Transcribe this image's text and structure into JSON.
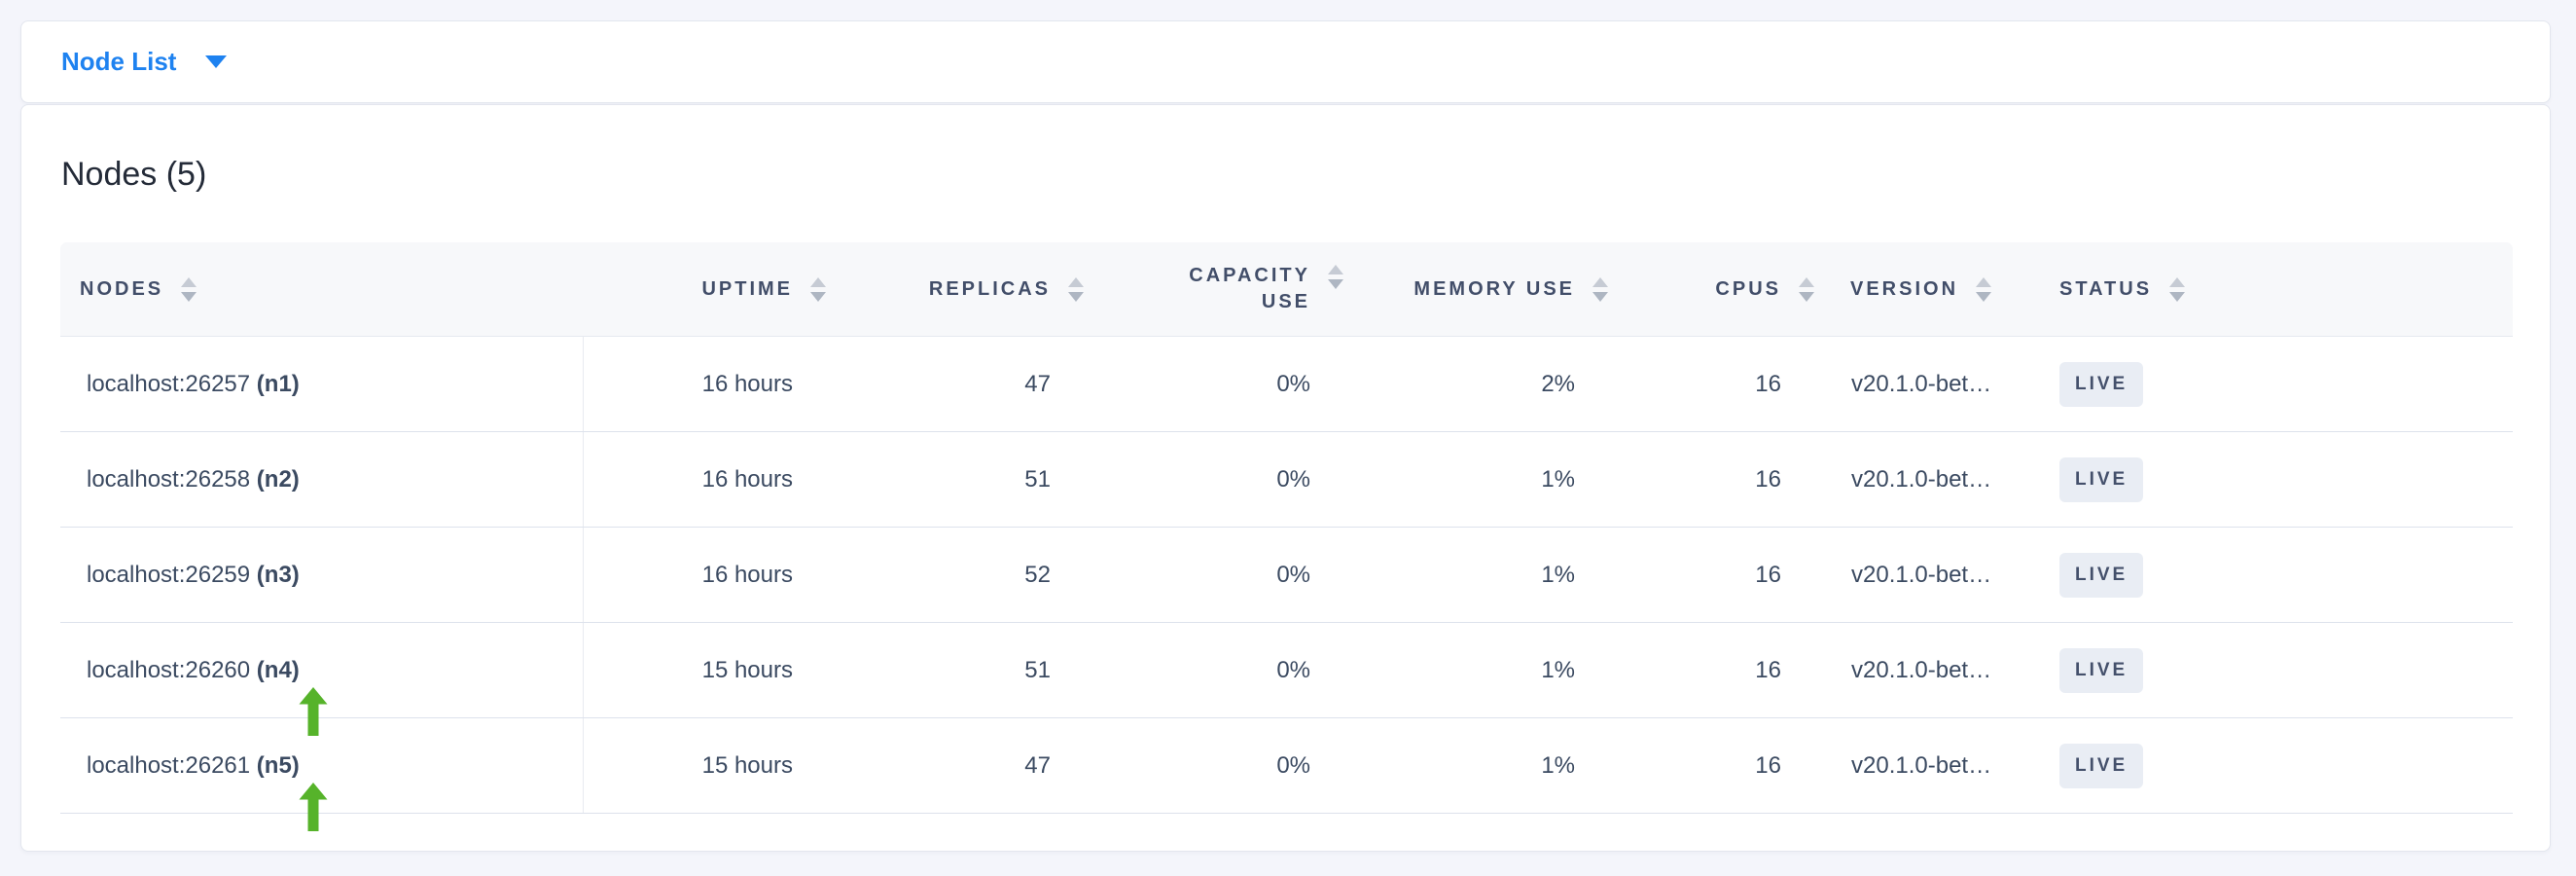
{
  "topbar": {
    "dropdown": {
      "label": "Node List"
    }
  },
  "main": {
    "title": "Nodes (5)"
  },
  "table": {
    "columns": [
      {
        "id": "nodes",
        "label": "NODES",
        "align": "left"
      },
      {
        "id": "uptime",
        "label": "UPTIME",
        "align": "right"
      },
      {
        "id": "replicas",
        "label": "REPLICAS",
        "align": "right"
      },
      {
        "id": "capacity_use",
        "label": "CAPACITY USE",
        "align": "right"
      },
      {
        "id": "memory_use",
        "label": "MEMORY USE",
        "align": "right"
      },
      {
        "id": "cpus",
        "label": "CPUS",
        "align": "right"
      },
      {
        "id": "version",
        "label": "VERSION",
        "align": "left"
      },
      {
        "id": "status",
        "label": "STATUS",
        "align": "left"
      }
    ],
    "rows": [
      {
        "address": "localhost:26257",
        "node_id": "(n1)",
        "uptime": "16 hours",
        "replicas": "47",
        "capacity_use": "0%",
        "memory_use": "2%",
        "cpus": "16",
        "version": "v20.1.0-bet…",
        "status": "LIVE",
        "arrow": false
      },
      {
        "address": "localhost:26258",
        "node_id": "(n2)",
        "uptime": "16 hours",
        "replicas": "51",
        "capacity_use": "0%",
        "memory_use": "1%",
        "cpus": "16",
        "version": "v20.1.0-bet…",
        "status": "LIVE",
        "arrow": false
      },
      {
        "address": "localhost:26259",
        "node_id": "(n3)",
        "uptime": "16 hours",
        "replicas": "52",
        "capacity_use": "0%",
        "memory_use": "1%",
        "cpus": "16",
        "version": "v20.1.0-bet…",
        "status": "LIVE",
        "arrow": false
      },
      {
        "address": "localhost:26260",
        "node_id": "(n4)",
        "uptime": "15 hours",
        "replicas": "51",
        "capacity_use": "0%",
        "memory_use": "1%",
        "cpus": "16",
        "version": "v20.1.0-bet…",
        "status": "LIVE",
        "arrow": true
      },
      {
        "address": "localhost:26261",
        "node_id": "(n5)",
        "uptime": "15 hours",
        "replicas": "47",
        "capacity_use": "0%",
        "memory_use": "1%",
        "cpus": "16",
        "version": "v20.1.0-bet…",
        "status": "LIVE",
        "arrow": true
      }
    ]
  },
  "colors": {
    "page_bg": "#f4f5fb",
    "accent_blue": "#1e82f0",
    "header_text": "#424e69",
    "cell_text": "#3b4a61",
    "badge_bg": "#e9edf4",
    "arrow_green": "#56b32a"
  }
}
